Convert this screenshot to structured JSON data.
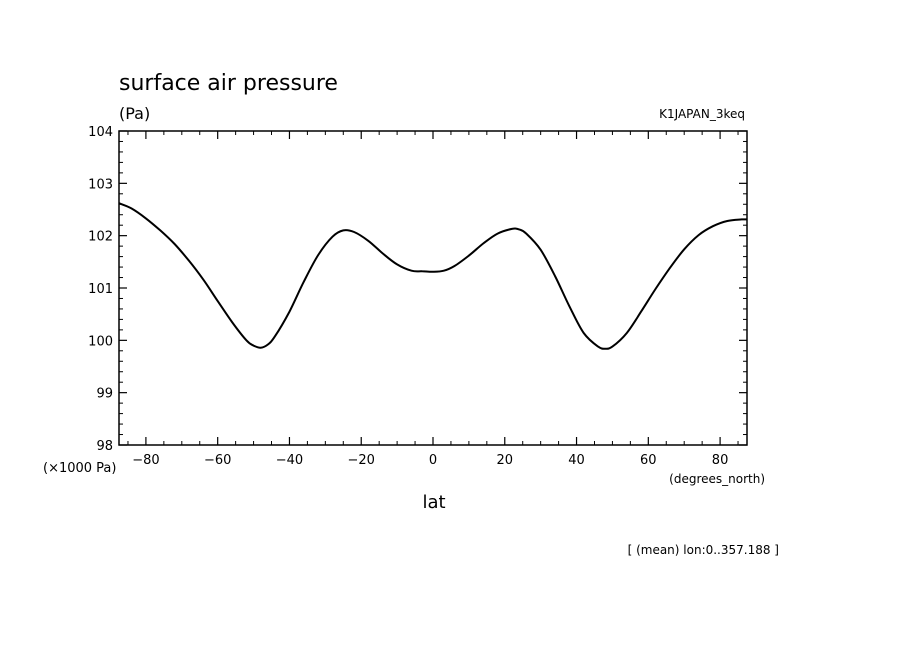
{
  "chart_data": {
    "type": "line",
    "title": "surface air pressure",
    "units": "(Pa)",
    "dataset": "K1JAPAN_3keq",
    "y_scale_label": "(×1000 Pa)",
    "x_units": "(degrees_north)",
    "xlabel": "lat",
    "footnote": "[ (mean) lon:0..357.188 ]",
    "xlim": [
      -87.5,
      87.5
    ],
    "ylim": [
      98,
      104
    ],
    "x_ticks": [
      -80,
      -60,
      -40,
      -20,
      0,
      20,
      40,
      60,
      80
    ],
    "x_tick_labels": [
      "−80",
      "−60",
      "−40",
      "−20",
      "0",
      "20",
      "40",
      "60",
      "80"
    ],
    "y_ticks": [
      98,
      99,
      100,
      101,
      102,
      103,
      104
    ],
    "y_tick_labels": [
      "98",
      "99",
      "100",
      "101",
      "102",
      "103",
      "104"
    ],
    "grid": false,
    "series": [
      {
        "x": [
          -87.5,
          -84,
          -80,
          -76,
          -72,
          -68,
          -64,
          -60,
          -56,
          -52,
          -50,
          -48,
          -46,
          -44,
          -40,
          -36,
          -32,
          -28,
          -25,
          -22,
          -18,
          -14,
          -10,
          -6,
          -3,
          0,
          3,
          6,
          10,
          14,
          18,
          22,
          24,
          26,
          30,
          34,
          38,
          42,
          46,
          48,
          50,
          54,
          58,
          62,
          66,
          70,
          74,
          78,
          82,
          86,
          87.5
        ],
        "y": [
          102.62,
          102.52,
          102.33,
          102.1,
          101.84,
          101.52,
          101.16,
          100.75,
          100.35,
          100.0,
          99.9,
          99.86,
          99.92,
          100.08,
          100.55,
          101.12,
          101.63,
          101.98,
          102.1,
          102.07,
          101.9,
          101.66,
          101.45,
          101.33,
          101.32,
          101.31,
          101.33,
          101.42,
          101.62,
          101.85,
          102.04,
          102.13,
          102.12,
          102.04,
          101.73,
          101.23,
          100.65,
          100.14,
          99.88,
          99.84,
          99.88,
          100.14,
          100.55,
          100.98,
          101.38,
          101.74,
          102.01,
          102.18,
          102.28,
          102.31,
          102.31
        ]
      }
    ]
  }
}
